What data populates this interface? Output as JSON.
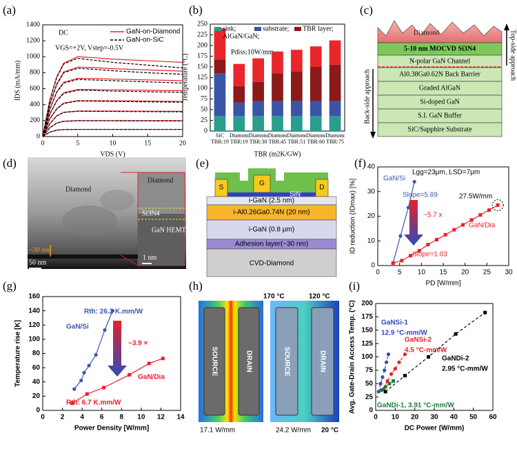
{
  "panel_labels": [
    "(a)",
    "(b)",
    "(c)",
    "(d)",
    "(e)",
    "(f)",
    "(g)",
    "(h)",
    "(i)"
  ],
  "chart_data": [
    {
      "type": "line",
      "xlabel": "VDS (V)",
      "ylabel": "IDS (mA/mm)",
      "annotations": [
        {
          "text": "DC",
          "color": "#000000"
        },
        {
          "text": "VGS=+2V, Vstep=-0.5V",
          "color": "#000000"
        }
      ],
      "x": [
        0,
        1,
        2,
        3,
        5,
        7,
        10,
        15,
        20
      ],
      "xlim": [
        0,
        20
      ],
      "xticks": [
        0,
        5,
        10,
        15,
        20
      ],
      "ylim": [
        0,
        1400
      ],
      "yticks": [
        0,
        200,
        400,
        600,
        800,
        1000,
        1200,
        1400
      ],
      "legend": "upper right",
      "series": [
        {
          "name": "GaN-on-Diamond",
          "color": "#e8202a",
          "dash": false,
          "values": [
            [
              0,
              450,
              750,
              920,
              1000,
              990,
              970,
              950,
              930
            ],
            [
              0,
              400,
              660,
              810,
              870,
              865,
              850,
              835,
              820
            ],
            [
              0,
              340,
              560,
              680,
              730,
              728,
              720,
              710,
              700
            ],
            [
              0,
              280,
              450,
              550,
              590,
              590,
              585,
              580,
              575
            ],
            [
              0,
              220,
              350,
              420,
              450,
              450,
              448,
              445,
              440
            ],
            [
              0,
              160,
              260,
              305,
              320,
              320,
              320,
              318,
              316
            ],
            [
              0,
              110,
              170,
              192,
              200,
              200,
              200,
              200,
              200
            ],
            [
              0,
              55,
              80,
              88,
              90,
              90,
              90,
              90,
              90
            ]
          ]
        },
        {
          "name": "GaN-on-SiC",
          "color": "#000000",
          "dash": true,
          "values": [
            [
              0,
              450,
              740,
              910,
              980,
              960,
              930,
              895,
              860
            ],
            [
              0,
              400,
              650,
              800,
              855,
              845,
              825,
              800,
              780
            ],
            [
              0,
              340,
              555,
              670,
              715,
              710,
              700,
              685,
              670
            ],
            [
              0,
              280,
              445,
              540,
              580,
              578,
              570,
              562,
              555
            ],
            [
              0,
              220,
              345,
              415,
              445,
              444,
              440,
              435,
              430
            ],
            [
              0,
              160,
              258,
              302,
              317,
              316,
              315,
              312,
              310
            ],
            [
              0,
              110,
              168,
              190,
              198,
              198,
              197,
              196,
              195
            ],
            [
              0,
              55,
              80,
              88,
              90,
              90,
              90,
              89,
              89
            ]
          ]
        }
      ]
    },
    {
      "type": "bar",
      "stacked": true,
      "xlabel": "TBR (m2K/GW)",
      "ylabel": "Temperature (°C)",
      "annotations": [
        {
          "text": "Pdiss:10W/mm",
          "color": "#000000"
        }
      ],
      "categories": [
        "SiC TBR:19",
        "Diamond TBR:19",
        "Diamond TBR:30",
        "Diamond TBR:45",
        "Diamond TBR:51",
        "Diamond TBR:60",
        "Diamond TBR:75"
      ],
      "ylim": [
        0,
        250
      ],
      "yticks": [
        0,
        25,
        50,
        75,
        100,
        125,
        150,
        175,
        200,
        225,
        250
      ],
      "legend": "upper center",
      "series": [
        {
          "name": "sink;",
          "color": "#2a9d8f",
          "values": [
            35,
            35,
            35,
            35,
            35,
            35,
            35
          ]
        },
        {
          "name": "substrate;",
          "color": "#3b54a6",
          "values": [
            100,
            32,
            35,
            35,
            35,
            35,
            35
          ]
        },
        {
          "name": "TBR layer;",
          "color": "#8b1a1a",
          "values": [
            32,
            38,
            45,
            65,
            70,
            80,
            85
          ]
        },
        {
          "name": "AlGaN/GaN;",
          "color": "#e8262b",
          "values": [
            73,
            52,
            55,
            51,
            50,
            48,
            57
          ]
        }
      ]
    },
    {
      "type": "scatter",
      "xlabel": "PD [W/mm]",
      "ylabel": "ID reduction (IDmax) [%]",
      "xlim": [
        0,
        30
      ],
      "xticks": [
        0,
        5,
        10,
        15,
        20,
        25,
        30
      ],
      "ylim": [
        0,
        40
      ],
      "yticks": [
        0,
        10,
        20,
        30,
        40
      ],
      "annotations": [
        {
          "text": "Lgg=23μm, LSD=7μm",
          "color": "#000000"
        },
        {
          "text": "Slope=5.89",
          "color": "#3b55b0"
        },
        {
          "text": "~5.7 x",
          "color": "#e8202a"
        },
        {
          "text": "27.5W/mm",
          "color": "#000000"
        },
        {
          "text": "Slope=1.03",
          "color": "#e8202a"
        }
      ],
      "series": [
        {
          "name": "GaN/Si",
          "color": "#3b55b0",
          "marker": "circle",
          "dash": false,
          "x": [
            3.5,
            5.2,
            7.0,
            8.4
          ],
          "values": [
            1,
            12,
            23.5,
            34
          ]
        },
        {
          "name": "GaN/Dia",
          "color": "#e8202a",
          "marker": "square",
          "dash": false,
          "x": [
            3.5,
            5.5,
            7.5,
            9.5,
            11.5,
            13.5,
            15.5,
            17.5,
            19.5,
            21.5,
            23.5,
            25.5,
            27.5
          ],
          "values": [
            1,
            2,
            4,
            6,
            8.5,
            10.5,
            12.5,
            14.5,
            16.5,
            18.5,
            20.5,
            22.5,
            24.5
          ]
        }
      ]
    },
    {
      "type": "scatter",
      "xlabel": "Power Density [W/mm]",
      "ylabel": "Temperature rise [K]",
      "xlim": [
        0,
        14
      ],
      "xticks": [
        0,
        2,
        4,
        6,
        8,
        10,
        12,
        14
      ],
      "ylim": [
        0,
        160
      ],
      "yticks": [
        0,
        20,
        40,
        60,
        80,
        100,
        120,
        140,
        160
      ],
      "annotations": [
        {
          "text": "Rth: 26.2 K.mm/W",
          "color": "#3b55b0"
        },
        {
          "text": "~3.9 ×",
          "color": "#e8202a"
        },
        {
          "text": "Rth: 6.7 K.mm/W",
          "color": "#e8202a"
        }
      ],
      "series": [
        {
          "name": "GaN/Si",
          "color": "#3b55b0",
          "marker": "circle",
          "dash": false,
          "x": [
            3.2,
            3.9,
            4.2,
            4.7,
            5.4,
            6.3,
            7.1
          ],
          "values": [
            30,
            42,
            53,
            63,
            78,
            113,
            140
          ]
        },
        {
          "name": "GaN/Dia",
          "color": "#e8202a",
          "marker": "square",
          "dash": false,
          "x": [
            3.0,
            4.5,
            6.2,
            8.8,
            10.8,
            12.2
          ],
          "values": [
            10,
            23,
            32,
            50,
            66,
            73
          ]
        }
      ]
    },
    {
      "type": "scatter",
      "xlabel": "DC Power (W/mm)",
      "ylabel": "Avg. Gate-Drain Access Temp. (°C)",
      "xlim": [
        0,
        60
      ],
      "xticks": [
        0,
        10,
        20,
        30,
        40,
        50,
        60
      ],
      "ylim": [
        0,
        200
      ],
      "yticks": [
        0,
        25,
        50,
        75,
        100,
        125,
        150,
        175,
        200
      ],
      "annotations": [
        {
          "text": "GaNSi-1",
          "color": "#2c4bb8"
        },
        {
          "text": "12.9 °C-mm/W",
          "color": "#2c4bb8"
        },
        {
          "text": "GaNSi-2",
          "color": "#e8202a"
        },
        {
          "text": "4.5 °C-mm/W",
          "color": "#e8202a"
        },
        {
          "text": "GaNDi-2",
          "color": "#000000"
        },
        {
          "text": "2.95 °C-mm/W",
          "color": "#000000"
        },
        {
          "text": "GaNDi-1, 3.91 °C-mm/W",
          "color": "#1e7a3a"
        }
      ],
      "series": [
        {
          "color": "#2c4bb8",
          "marker": "circle",
          "dash": true,
          "x": [
            1.5,
            2.5,
            3.5,
            4.5,
            5.5,
            6.5
          ],
          "values": [
            35,
            50,
            62,
            75,
            90,
            105
          ]
        },
        {
          "color": "#e8202a",
          "marker": "circle",
          "dash": true,
          "x": [
            4,
            6,
            8,
            10,
            12,
            15
          ],
          "values": [
            40,
            55,
            68,
            78,
            90,
            105
          ]
        },
        {
          "color": "#1e7a3a",
          "marker": "square",
          "dash": true,
          "x": [
            3,
            5,
            7,
            9
          ],
          "values": [
            38,
            44,
            50,
            55
          ]
        },
        {
          "color": "#000000",
          "marker": "square",
          "dash": true,
          "x": [
            5,
            15,
            27,
            41,
            56
          ],
          "values": [
            35,
            65,
            100,
            143,
            183
          ]
        }
      ]
    }
  ],
  "diagram_c": {
    "top": "Diamond",
    "layers": [
      "5-10 nm MOCVD Si3N4",
      "N-polar GaN Channel",
      "Al0.38Ga0.62N Back Barrier",
      "Graded AlGaN",
      "Si-doped GaN",
      "S.I. GaN Buffer",
      "SiC/Sapphire Substrate"
    ],
    "top_side": "Top-side approach",
    "back_side": "Back-side approach"
  },
  "image_d": {
    "labels": [
      "Diamond",
      "Diamond",
      "Si3N4",
      "GaN HEMT",
      "~30 nm",
      "50 nm",
      "1 nm"
    ]
  },
  "diagram_e": {
    "cap": "SiN",
    "source": "S",
    "gate": "G",
    "drain": "D",
    "passivation": "SiN",
    "layers": [
      "i-GaN (2.5 nm)",
      "i-Al0.26Ga0.74N (20 nm)",
      "i-GaN (0.8 μm)",
      "Adhesion layer(~30 nm)",
      "CVD-Diamond"
    ]
  },
  "image_h": {
    "labels": [
      "170 °C",
      "120 °C",
      "SOURCE",
      "DRAIN",
      "SOURCE",
      "DRAIN",
      "17.1 W/mm",
      "24.2 W/mm",
      "20 °C"
    ]
  }
}
